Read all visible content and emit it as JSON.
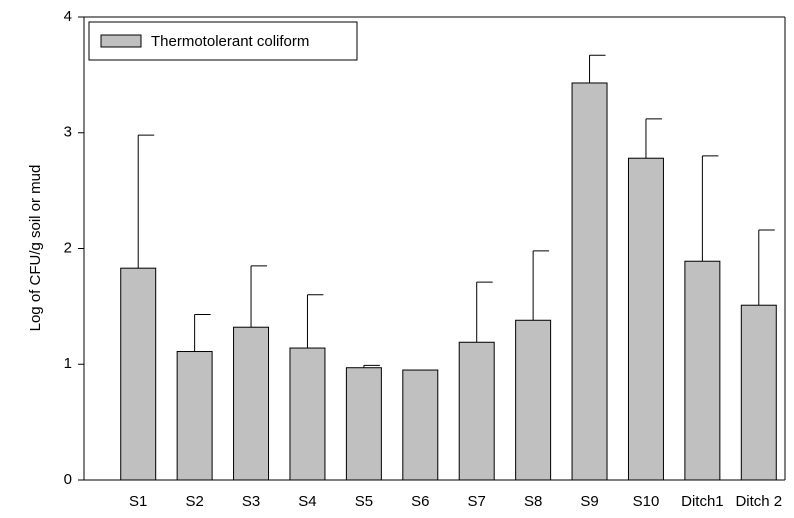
{
  "chart_data": {
    "type": "bar",
    "categories": [
      "S1",
      "S2",
      "S3",
      "S4",
      "S5",
      "S6",
      "S7",
      "S8",
      "S9",
      "S10",
      "Ditch1",
      "Ditch 2"
    ],
    "series": [
      {
        "name": "Thermotolerant coliform",
        "color": "#c0c0c0",
        "values": [
          1.83,
          1.11,
          1.32,
          1.14,
          0.97,
          0.95,
          1.19,
          1.38,
          3.43,
          2.78,
          1.89,
          1.51
        ],
        "errors": [
          1.15,
          0.32,
          0.53,
          0.46,
          0.02,
          0,
          0.52,
          0.6,
          0.24,
          0.34,
          0.91,
          0.65
        ]
      }
    ],
    "ylabel": "Log of CFU/g soil or mud",
    "ylim": [
      0,
      4
    ],
    "yticks": [
      0,
      1,
      2,
      3,
      4
    ],
    "legend": "upper left"
  }
}
